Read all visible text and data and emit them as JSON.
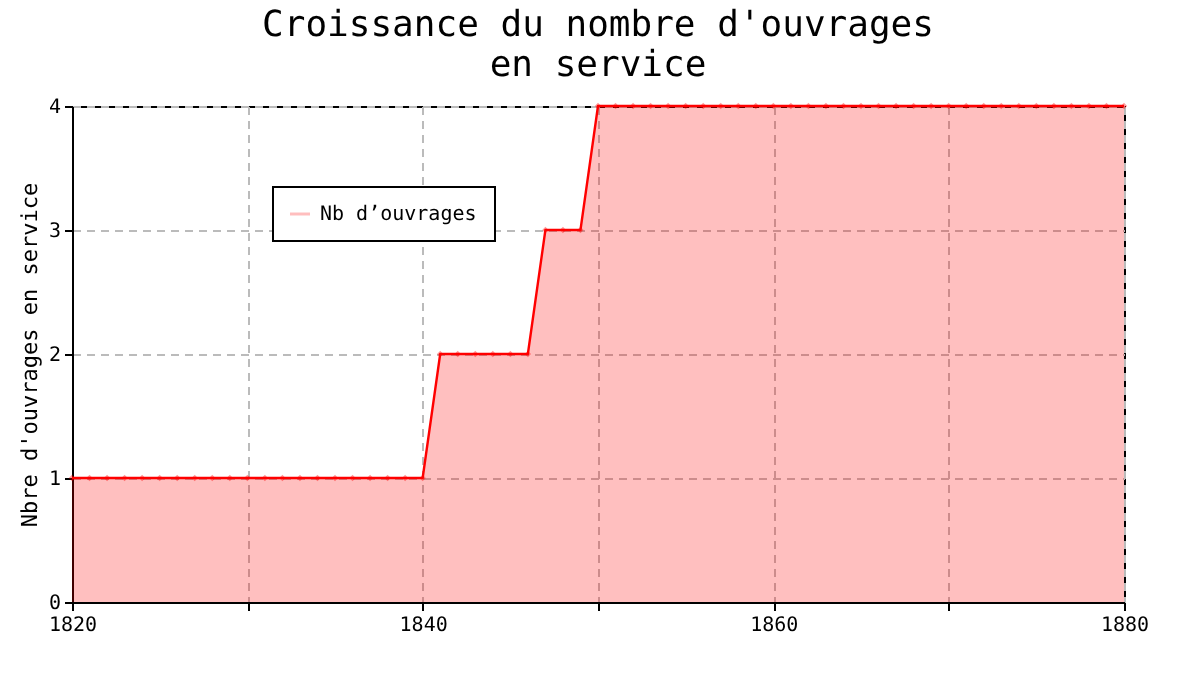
{
  "chart_data": {
    "type": "area",
    "title": "Croissance du nombre d'ouvrages\nen service",
    "ylabel": "Nbre d'ouvrages en service",
    "x": [
      1820,
      1821,
      1822,
      1823,
      1824,
      1825,
      1826,
      1827,
      1828,
      1829,
      1830,
      1831,
      1832,
      1833,
      1834,
      1835,
      1836,
      1837,
      1838,
      1839,
      1840,
      1841,
      1842,
      1843,
      1844,
      1845,
      1846,
      1847,
      1848,
      1849,
      1850,
      1851,
      1852,
      1853,
      1854,
      1855,
      1856,
      1857,
      1858,
      1859,
      1860,
      1861,
      1862,
      1863,
      1864,
      1865,
      1866,
      1867,
      1868,
      1869,
      1870,
      1871,
      1872,
      1873,
      1874,
      1875,
      1876,
      1877,
      1878,
      1879,
      1880
    ],
    "series": [
      {
        "name": "Nb d’ouvrages",
        "color": "#ff0000",
        "values": [
          1,
          1,
          1,
          1,
          1,
          1,
          1,
          1,
          1,
          1,
          1,
          1,
          1,
          1,
          1,
          1,
          1,
          1,
          1,
          1,
          1,
          2,
          2,
          2,
          2,
          2,
          2,
          3,
          3,
          3,
          4,
          4,
          4,
          4,
          4,
          4,
          4,
          4,
          4,
          4,
          4,
          4,
          4,
          4,
          4,
          4,
          4,
          4,
          4,
          4,
          4,
          4,
          4,
          4,
          4,
          4,
          4,
          4,
          4,
          4,
          4
        ]
      }
    ],
    "xlim": [
      1820,
      1880
    ],
    "xticks": [
      1820,
      {
        "value": 1830,
        "label": null
      },
      1840,
      {
        "value": 1850,
        "label": null
      },
      1860,
      {
        "value": 1870,
        "label": null
      },
      1880
    ],
    "ylim": [
      0,
      4
    ],
    "yticks": [
      0,
      1,
      2,
      3,
      4
    ],
    "grid": true,
    "legend": "top left",
    "marker": "diamond",
    "line_style": "solid"
  }
}
